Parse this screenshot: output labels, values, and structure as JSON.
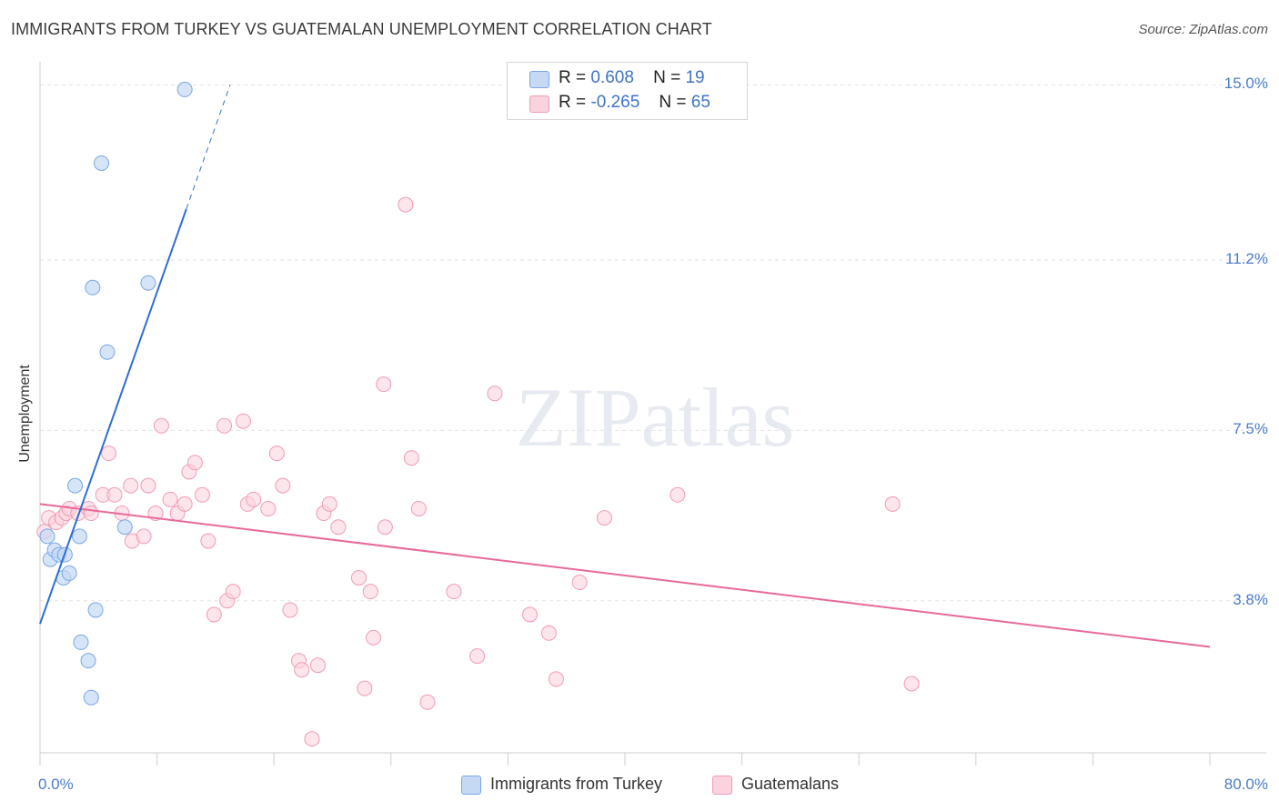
{
  "chart_data": {
    "type": "scatter",
    "title": "IMMIGRANTS FROM TURKEY VS GUATEMALAN UNEMPLOYMENT CORRELATION CHART",
    "source": "Source: ZipAtlas.com",
    "xlabel": "",
    "ylabel": "Unemployment",
    "xlim": [
      0,
      80
    ],
    "ylim": [
      0.5,
      15.5
    ],
    "x_tick_labels": [
      "0.0%",
      "80.0%"
    ],
    "y_ticks": [
      3.8,
      7.5,
      11.2,
      15.0
    ],
    "y_tick_labels": [
      "3.8%",
      "7.5%",
      "11.2%",
      "15.0%"
    ],
    "watermark": "ZIPatlas",
    "legend": {
      "series1": {
        "r_label": "R =",
        "r_value": "0.608",
        "n_label": "N =",
        "n_value": "19"
      },
      "series2": {
        "r_label": "R =",
        "r_value": "-0.265",
        "n_label": "N =",
        "n_value": "65"
      }
    },
    "series": [
      {
        "name": "Immigrants from Turkey",
        "color": "#7aa7e6",
        "fill": "#c5d9f5",
        "line_color": "#2d6fd1",
        "trend": {
          "x0": 0,
          "y0": 3.3,
          "x1": 10,
          "y1": 12.3,
          "dash_to_x": 13,
          "dash_to_y": 15.0
        },
        "points": [
          [
            0.5,
            5.2
          ],
          [
            0.7,
            4.7
          ],
          [
            1.0,
            4.9
          ],
          [
            1.3,
            4.8
          ],
          [
            1.6,
            4.3
          ],
          [
            1.7,
            4.8
          ],
          [
            2.0,
            4.4
          ],
          [
            2.4,
            6.3
          ],
          [
            2.7,
            5.2
          ],
          [
            2.8,
            2.9
          ],
          [
            3.3,
            2.5
          ],
          [
            3.5,
            1.7
          ],
          [
            3.8,
            3.6
          ],
          [
            4.2,
            13.3
          ],
          [
            4.6,
            9.2
          ],
          [
            3.6,
            10.6
          ],
          [
            5.8,
            5.4
          ],
          [
            7.4,
            10.7
          ],
          [
            9.9,
            14.9
          ]
        ]
      },
      {
        "name": "Guatemalans",
        "color": "#f29ab4",
        "fill": "#fbd3df",
        "line_color": "#e8699a",
        "trend": {
          "x0": 0,
          "y0": 5.9,
          "x1": 80,
          "y1": 2.8
        },
        "points": [
          [
            0.3,
            5.3
          ],
          [
            0.6,
            5.6
          ],
          [
            1.1,
            5.5
          ],
          [
            1.5,
            5.6
          ],
          [
            1.8,
            5.7
          ],
          [
            2.0,
            5.8
          ],
          [
            2.6,
            5.7
          ],
          [
            3.3,
            5.8
          ],
          [
            3.5,
            5.7
          ],
          [
            4.3,
            6.1
          ],
          [
            4.7,
            7.0
          ],
          [
            5.1,
            6.1
          ],
          [
            5.6,
            5.7
          ],
          [
            6.2,
            6.3
          ],
          [
            6.3,
            5.1
          ],
          [
            7.1,
            5.2
          ],
          [
            7.4,
            6.3
          ],
          [
            7.9,
            5.7
          ],
          [
            8.3,
            7.6
          ],
          [
            8.9,
            6.0
          ],
          [
            9.4,
            5.7
          ],
          [
            9.9,
            5.9
          ],
          [
            10.2,
            6.6
          ],
          [
            10.6,
            6.8
          ],
          [
            11.1,
            6.1
          ],
          [
            11.5,
            5.1
          ],
          [
            11.9,
            3.5
          ],
          [
            12.6,
            7.6
          ],
          [
            12.8,
            3.8
          ],
          [
            13.2,
            4.0
          ],
          [
            13.9,
            7.7
          ],
          [
            14.2,
            5.9
          ],
          [
            14.6,
            6.0
          ],
          [
            15.6,
            5.8
          ],
          [
            16.2,
            7.0
          ],
          [
            16.6,
            6.3
          ],
          [
            17.1,
            3.6
          ],
          [
            17.7,
            2.5
          ],
          [
            17.9,
            2.3
          ],
          [
            18.6,
            0.8
          ],
          [
            19.0,
            2.4
          ],
          [
            19.4,
            5.7
          ],
          [
            19.8,
            5.9
          ],
          [
            20.4,
            5.4
          ],
          [
            21.8,
            4.3
          ],
          [
            22.2,
            1.9
          ],
          [
            22.6,
            4.0
          ],
          [
            22.8,
            3.0
          ],
          [
            23.5,
            8.5
          ],
          [
            23.6,
            5.4
          ],
          [
            25.0,
            12.4
          ],
          [
            25.4,
            6.9
          ],
          [
            25.9,
            5.8
          ],
          [
            26.5,
            1.6
          ],
          [
            28.3,
            4.0
          ],
          [
            29.9,
            2.6
          ],
          [
            31.1,
            8.3
          ],
          [
            33.5,
            3.5
          ],
          [
            34.8,
            3.1
          ],
          [
            35.3,
            2.1
          ],
          [
            36.9,
            4.2
          ],
          [
            38.6,
            5.6
          ],
          [
            43.6,
            6.1
          ],
          [
            58.3,
            5.9
          ],
          [
            59.6,
            2.0
          ]
        ]
      }
    ]
  }
}
